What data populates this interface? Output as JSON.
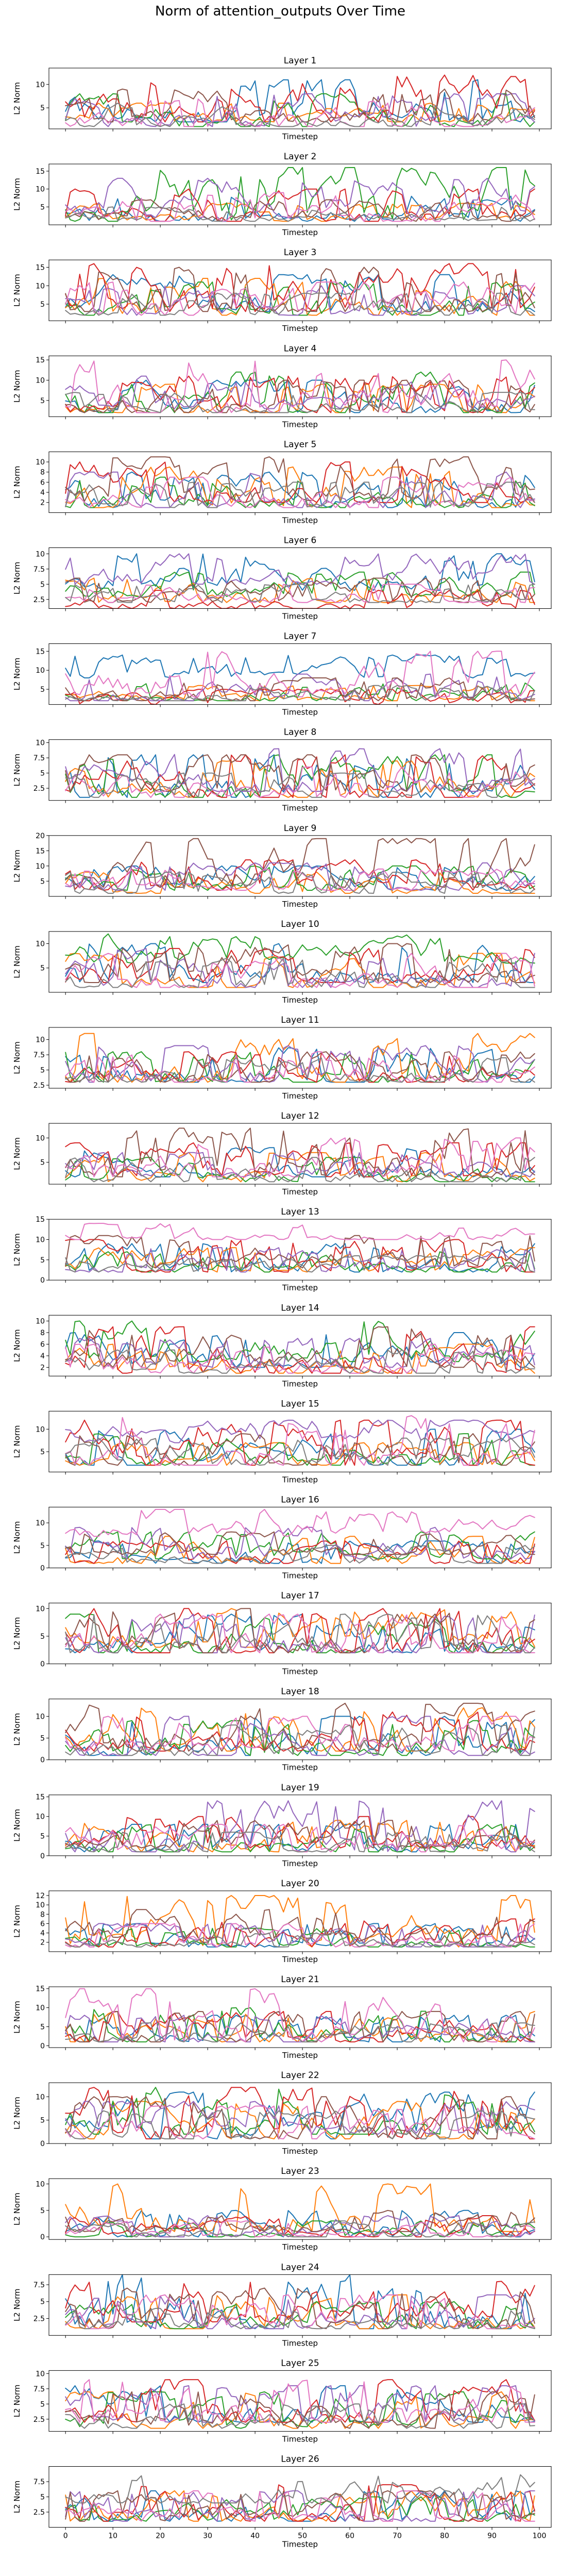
{
  "figure_title": "Norm of attention_outputs Over Time",
  "colors": [
    "#1f77b4",
    "#ff7f0e",
    "#2ca02c",
    "#d62728",
    "#9467bd",
    "#8c564b",
    "#e377c2",
    "#7f7f7f"
  ],
  "chart_data": [
    {
      "type": "line",
      "title": "Layer 1",
      "xlabel": "Timestep",
      "ylabel": "L2 Norm",
      "xlim": [
        -3.5,
        102.5
      ],
      "ylim": [
        0.5,
        13.5
      ],
      "yticks": [
        5,
        10
      ],
      "xticks": [],
      "grid": false,
      "n_series": 8,
      "series_ranges": [
        [
          2,
          11
        ],
        [
          2,
          6
        ],
        [
          1,
          8
        ],
        [
          2,
          12
        ],
        [
          1,
          8
        ],
        [
          2,
          9
        ],
        [
          1,
          7
        ],
        [
          1,
          6
        ]
      ]
    },
    {
      "type": "line",
      "title": "Layer 2",
      "xlabel": "Timestep",
      "ylabel": "L2 Norm",
      "xlim": [
        -3.5,
        102.5
      ],
      "ylim": [
        0,
        17
      ],
      "yticks": [
        5,
        10,
        15
      ],
      "xticks": [],
      "grid": false,
      "n_series": 8,
      "series_ranges": [
        [
          1,
          8
        ],
        [
          1,
          6
        ],
        [
          1,
          16
        ],
        [
          1,
          10
        ],
        [
          2,
          13
        ],
        [
          1,
          7
        ],
        [
          1,
          9
        ],
        [
          1,
          5
        ]
      ]
    },
    {
      "type": "line",
      "title": "Layer 3",
      "xlabel": "Timestep",
      "ylabel": "L2 Norm",
      "xlim": [
        -3.5,
        102.5
      ],
      "ylim": [
        0.5,
        17
      ],
      "yticks": [
        5,
        10,
        15
      ],
      "xticks": [],
      "grid": false,
      "n_series": 8,
      "series_ranges": [
        [
          3,
          13
        ],
        [
          2,
          12
        ],
        [
          2,
          11
        ],
        [
          3,
          16
        ],
        [
          2,
          10
        ],
        [
          3,
          15
        ],
        [
          2,
          11
        ],
        [
          2,
          8
        ]
      ]
    },
    {
      "type": "line",
      "title": "Layer 4",
      "xlabel": "Timestep",
      "ylabel": "L2 Norm",
      "xlim": [
        -3.5,
        102.5
      ],
      "ylim": [
        1,
        16
      ],
      "yticks": [
        5,
        10,
        15
      ],
      "xticks": [],
      "grid": false,
      "n_series": 8,
      "series_ranges": [
        [
          2,
          10
        ],
        [
          2,
          9
        ],
        [
          2,
          12
        ],
        [
          2,
          11
        ],
        [
          3,
          11
        ],
        [
          2,
          10
        ],
        [
          2,
          15
        ],
        [
          2,
          7
        ]
      ]
    },
    {
      "type": "line",
      "title": "Layer 5",
      "xlabel": "Timestep",
      "ylabel": "L2 Norm",
      "xlim": [
        -3.5,
        102.5
      ],
      "ylim": [
        0,
        12
      ],
      "yticks": [
        2,
        4,
        6,
        8,
        10
      ],
      "xticks": [],
      "grid": false,
      "n_series": 8,
      "series_ranges": [
        [
          1,
          8
        ],
        [
          1,
          9
        ],
        [
          1,
          7
        ],
        [
          2,
          10
        ],
        [
          1,
          8
        ],
        [
          2,
          11
        ],
        [
          1,
          7
        ],
        [
          1,
          6
        ]
      ]
    },
    {
      "type": "line",
      "title": "Layer 6",
      "xlabel": "Timestep",
      "ylabel": "L2 Norm",
      "xlim": [
        -3.5,
        102.5
      ],
      "ylim": [
        1,
        11
      ],
      "yticks": [
        2.5,
        5.0,
        7.5,
        10.0
      ],
      "xticks": [],
      "grid": false,
      "n_series": 8,
      "series_ranges": [
        [
          4,
          10
        ],
        [
          2,
          6
        ],
        [
          3,
          7
        ],
        [
          1,
          4
        ],
        [
          5,
          10
        ],
        [
          2,
          6
        ],
        [
          2,
          5
        ],
        [
          2,
          5
        ]
      ]
    },
    {
      "type": "line",
      "title": "Layer 7",
      "xlabel": "Timestep",
      "ylabel": "L2 Norm",
      "xlim": [
        -3.5,
        102.5
      ],
      "ylim": [
        1,
        17
      ],
      "yticks": [
        5,
        10,
        15
      ],
      "xticks": [],
      "grid": false,
      "n_series": 8,
      "series_ranges": [
        [
          8,
          14
        ],
        [
          2,
          6
        ],
        [
          2,
          7
        ],
        [
          1,
          5
        ],
        [
          2,
          9
        ],
        [
          2,
          8
        ],
        [
          3,
          15
        ],
        [
          2,
          6
        ]
      ]
    },
    {
      "type": "line",
      "title": "Layer 8",
      "xlabel": "Timestep",
      "ylabel": "L2 Norm",
      "xlim": [
        -3.5,
        102.5
      ],
      "ylim": [
        0.5,
        10.5
      ],
      "yticks": [
        2.5,
        5.0,
        7.5,
        10.0
      ],
      "xticks": [],
      "grid": false,
      "n_series": 8,
      "series_ranges": [
        [
          1,
          8
        ],
        [
          1,
          7
        ],
        [
          1,
          8
        ],
        [
          1,
          8
        ],
        [
          2,
          9
        ],
        [
          2,
          8
        ],
        [
          1,
          6
        ],
        [
          1,
          5
        ]
      ]
    },
    {
      "type": "line",
      "title": "Layer 9",
      "xlabel": "Timestep",
      "ylabel": "L2 Norm",
      "xlim": [
        -3.5,
        102.5
      ],
      "ylim": [
        0,
        20
      ],
      "yticks": [
        5,
        10,
        15,
        20
      ],
      "xticks": [],
      "grid": false,
      "n_series": 8,
      "series_ranges": [
        [
          2,
          10
        ],
        [
          1,
          8
        ],
        [
          2,
          10
        ],
        [
          2,
          12
        ],
        [
          2,
          11
        ],
        [
          3,
          19
        ],
        [
          2,
          9
        ],
        [
          1,
          8
        ]
      ]
    },
    {
      "type": "line",
      "title": "Layer 10",
      "xlabel": "Timestep",
      "ylabel": "L2 Norm",
      "xlim": [
        -3.5,
        102.5
      ],
      "ylim": [
        0,
        12.5
      ],
      "yticks": [
        5,
        10
      ],
      "xticks": [],
      "grid": false,
      "n_series": 8,
      "series_ranges": [
        [
          2,
          10
        ],
        [
          1,
          8
        ],
        [
          6,
          12
        ],
        [
          2,
          9
        ],
        [
          1,
          9
        ],
        [
          2,
          10
        ],
        [
          1,
          8
        ],
        [
          1,
          7
        ]
      ]
    },
    {
      "type": "line",
      "title": "Layer 11",
      "xlabel": "Timestep",
      "ylabel": "L2 Norm",
      "xlim": [
        -3.5,
        102.5
      ],
      "ylim": [
        2,
        12
      ],
      "yticks": [
        2.5,
        5.0,
        7.5,
        10.0
      ],
      "xticks": [],
      "grid": false,
      "n_series": 8,
      "series_ranges": [
        [
          3,
          9
        ],
        [
          3,
          11
        ],
        [
          3,
          8
        ],
        [
          3,
          8
        ],
        [
          3,
          9
        ],
        [
          3,
          8
        ],
        [
          3,
          8
        ],
        [
          3,
          7
        ]
      ]
    },
    {
      "type": "line",
      "title": "Layer 12",
      "xlabel": "Timestep",
      "ylabel": "L2 Norm",
      "xlim": [
        -3.5,
        102.5
      ],
      "ylim": [
        0.5,
        13
      ],
      "yticks": [
        5,
        10
      ],
      "xticks": [],
      "grid": false,
      "n_series": 8,
      "series_ranges": [
        [
          2,
          8
        ],
        [
          1,
          7
        ],
        [
          1,
          6
        ],
        [
          2,
          9
        ],
        [
          2,
          7
        ],
        [
          2,
          12
        ],
        [
          2,
          10
        ],
        [
          1,
          6
        ]
      ]
    },
    {
      "type": "line",
      "title": "Layer 13",
      "xlabel": "Timestep",
      "ylabel": "L2 Norm",
      "xlim": [
        -3.5,
        102.5
      ],
      "ylim": [
        0,
        15
      ],
      "yticks": [
        0,
        5,
        10,
        15
      ],
      "xticks": [],
      "grid": false,
      "n_series": 8,
      "series_ranges": [
        [
          2,
          9
        ],
        [
          2,
          8
        ],
        [
          2,
          7
        ],
        [
          2,
          10
        ],
        [
          2,
          8
        ],
        [
          3,
          11
        ],
        [
          10,
          14
        ],
        [
          2,
          6
        ]
      ]
    },
    {
      "type": "line",
      "title": "Layer 14",
      "xlabel": "Timestep",
      "ylabel": "L2 Norm",
      "xlim": [
        -3.5,
        102.5
      ],
      "ylim": [
        0.5,
        11
      ],
      "yticks": [
        2,
        4,
        6,
        8,
        10
      ],
      "xticks": [],
      "grid": false,
      "n_series": 8,
      "series_ranges": [
        [
          2,
          8
        ],
        [
          1,
          6
        ],
        [
          3,
          10
        ],
        [
          1,
          9
        ],
        [
          2,
          7
        ],
        [
          2,
          9
        ],
        [
          1,
          6
        ],
        [
          1,
          5
        ]
      ]
    },
    {
      "type": "line",
      "title": "Layer 15",
      "xlabel": "Timestep",
      "ylabel": "L2 Norm",
      "xlim": [
        -3.5,
        102.5
      ],
      "ylim": [
        0.5,
        14
      ],
      "yticks": [
        5,
        10
      ],
      "xticks": [],
      "grid": false,
      "n_series": 8,
      "series_ranges": [
        [
          2,
          10
        ],
        [
          2,
          7
        ],
        [
          2,
          9
        ],
        [
          2,
          12
        ],
        [
          7,
          12
        ],
        [
          2,
          9
        ],
        [
          2,
          13
        ],
        [
          2,
          8
        ]
      ]
    },
    {
      "type": "line",
      "title": "Layer 16",
      "xlabel": "Timestep",
      "ylabel": "L2 Norm",
      "xlim": [
        -3.5,
        102.5
      ],
      "ylim": [
        0,
        13.5
      ],
      "yticks": [
        0,
        5,
        10
      ],
      "xticks": [],
      "grid": false,
      "n_series": 8,
      "series_ranges": [
        [
          1,
          6
        ],
        [
          1,
          7
        ],
        [
          2,
          8
        ],
        [
          1,
          6
        ],
        [
          2,
          9
        ],
        [
          3,
          8
        ],
        [
          7,
          13
        ],
        [
          1,
          5
        ]
      ]
    },
    {
      "type": "line",
      "title": "Layer 17",
      "xlabel": "Timestep",
      "ylabel": "L2 Norm",
      "xlim": [
        -3.5,
        102.5
      ],
      "ylim": [
        0,
        11
      ],
      "yticks": [
        0,
        5,
        10
      ],
      "xticks": [],
      "grid": false,
      "n_series": 8,
      "series_ranges": [
        [
          2,
          9
        ],
        [
          3,
          10
        ],
        [
          2,
          9
        ],
        [
          2,
          10
        ],
        [
          2,
          9
        ],
        [
          2,
          10
        ],
        [
          2,
          9
        ],
        [
          2,
          9
        ]
      ]
    },
    {
      "type": "line",
      "title": "Layer 18",
      "xlabel": "Timestep",
      "ylabel": "L2 Norm",
      "xlim": [
        -3.5,
        102.5
      ],
      "ylim": [
        0,
        14
      ],
      "yticks": [
        0,
        5,
        10
      ],
      "xticks": [],
      "grid": false,
      "n_series": 8,
      "series_ranges": [
        [
          1,
          10
        ],
        [
          2,
          12
        ],
        [
          1,
          9
        ],
        [
          2,
          11
        ],
        [
          1,
          10
        ],
        [
          2,
          13
        ],
        [
          2,
          10
        ],
        [
          1,
          8
        ]
      ]
    },
    {
      "type": "line",
      "title": "Layer 19",
      "xlabel": "Timestep",
      "ylabel": "L2 Norm",
      "xlim": [
        -3.5,
        102.5
      ],
      "ylim": [
        0,
        15.5
      ],
      "yticks": [
        0,
        5,
        10,
        15
      ],
      "xticks": [],
      "grid": false,
      "n_series": 8,
      "series_ranges": [
        [
          1,
          8
        ],
        [
          1,
          9
        ],
        [
          1,
          8
        ],
        [
          2,
          10
        ],
        [
          1,
          14
        ],
        [
          2,
          9
        ],
        [
          1,
          8
        ],
        [
          1,
          6
        ]
      ]
    },
    {
      "type": "line",
      "title": "Layer 20",
      "xlabel": "Timestep",
      "ylabel": "L2 Norm",
      "xlim": [
        -3.5,
        102.5
      ],
      "ylim": [
        0,
        13
      ],
      "yticks": [
        2,
        4,
        6,
        8,
        10,
        12
      ],
      "xticks": [],
      "grid": false,
      "n_series": 8,
      "series_ranges": [
        [
          1,
          6
        ],
        [
          1,
          12
        ],
        [
          1,
          5
        ],
        [
          1,
          7
        ],
        [
          1,
          6
        ],
        [
          2,
          9
        ],
        [
          1,
          6
        ],
        [
          1,
          4
        ]
      ]
    },
    {
      "type": "line",
      "title": "Layer 21",
      "xlabel": "Timestep",
      "ylabel": "L2 Norm",
      "xlim": [
        -3.5,
        102.5
      ],
      "ylim": [
        -0.5,
        15.5
      ],
      "yticks": [
        0,
        5,
        10,
        15
      ],
      "xticks": [],
      "grid": false,
      "n_series": 8,
      "series_ranges": [
        [
          1,
          8
        ],
        [
          1,
          9
        ],
        [
          1,
          10
        ],
        [
          1,
          9
        ],
        [
          1,
          8
        ],
        [
          1,
          9
        ],
        [
          1,
          15
        ],
        [
          1,
          6
        ]
      ]
    },
    {
      "type": "line",
      "title": "Layer 22",
      "xlabel": "Timestep",
      "ylabel": "L2 Norm",
      "xlim": [
        -3.5,
        102.5
      ],
      "ylim": [
        0,
        13
      ],
      "yticks": [
        0,
        5,
        10
      ],
      "xticks": [],
      "grid": false,
      "n_series": 8,
      "series_ranges": [
        [
          1,
          11
        ],
        [
          1,
          9
        ],
        [
          2,
          12
        ],
        [
          1,
          12
        ],
        [
          2,
          9
        ],
        [
          1,
          10
        ],
        [
          1,
          8
        ],
        [
          1,
          7
        ]
      ]
    },
    {
      "type": "line",
      "title": "Layer 23",
      "xlabel": "Timestep",
      "ylabel": "L2 Norm",
      "xlim": [
        -3.5,
        102.5
      ],
      "ylim": [
        -0.5,
        11
      ],
      "yticks": [
        0,
        5,
        10
      ],
      "xticks": [],
      "grid": false,
      "n_series": 8,
      "series_ranges": [
        [
          0,
          5
        ],
        [
          1,
          10
        ],
        [
          0,
          3
        ],
        [
          0,
          4
        ],
        [
          0,
          4
        ],
        [
          1,
          5
        ],
        [
          0,
          3
        ],
        [
          0,
          3
        ]
      ]
    },
    {
      "type": "line",
      "title": "Layer 24",
      "xlabel": "Timestep",
      "ylabel": "L2 Norm",
      "xlim": [
        -3.5,
        102.5
      ],
      "ylim": [
        0,
        9
      ],
      "yticks": [
        2.5,
        5.0,
        7.5
      ],
      "xticks": [],
      "grid": false,
      "n_series": 8,
      "series_ranges": [
        [
          1,
          9
        ],
        [
          1,
          6
        ],
        [
          1,
          5
        ],
        [
          2,
          8
        ],
        [
          1,
          6
        ],
        [
          1,
          7
        ],
        [
          1,
          6
        ],
        [
          1,
          4
        ]
      ]
    },
    {
      "type": "line",
      "title": "Layer 25",
      "xlabel": "Timestep",
      "ylabel": "L2 Norm",
      "xlim": [
        -3.5,
        102.5
      ],
      "ylim": [
        0.5,
        10.5
      ],
      "yticks": [
        2.5,
        5.0,
        7.5,
        10.0
      ],
      "xticks": [],
      "grid": false,
      "n_series": 8,
      "series_ranges": [
        [
          2,
          8
        ],
        [
          1,
          7
        ],
        [
          1,
          7
        ],
        [
          2,
          9
        ],
        [
          2,
          8
        ],
        [
          1,
          7
        ],
        [
          2,
          9
        ],
        [
          1,
          5
        ]
      ]
    },
    {
      "type": "line",
      "title": "Layer 26",
      "xlabel": "Timestep",
      "ylabel": "L2 Norm",
      "xlim": [
        -3.5,
        102.5
      ],
      "ylim": [
        0,
        10
      ],
      "yticks": [
        2.5,
        5.0,
        7.5
      ],
      "xticks": [
        0,
        10,
        20,
        30,
        40,
        50,
        60,
        70,
        80,
        90,
        100
      ],
      "grid": false,
      "n_series": 8,
      "series_ranges": [
        [
          1,
          6
        ],
        [
          1,
          6
        ],
        [
          1,
          5
        ],
        [
          1,
          7
        ],
        [
          1,
          6
        ],
        [
          1,
          6
        ],
        [
          1,
          6
        ],
        [
          4,
          9
        ]
      ]
    }
  ]
}
